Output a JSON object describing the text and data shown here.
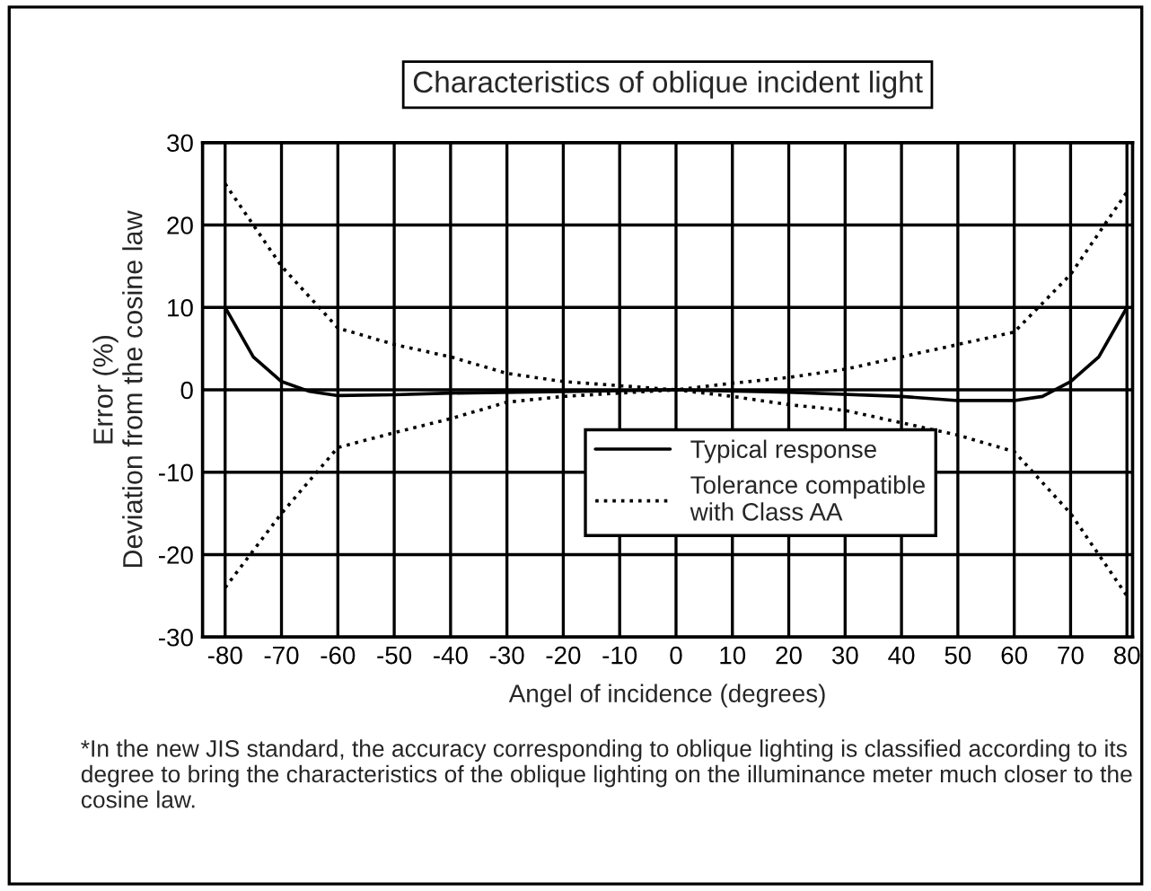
{
  "chart_data": {
    "type": "line",
    "title": "Characteristics of oblique incident light",
    "xlabel": "Angel of incidence (degrees)",
    "ylabel": "Error (%)\nDeviation from the cosine law",
    "annotations": [
      "*In the new JIS standard, the accuracy corresponding to oblique lighting is classified according to its degree to bring the characteristics of the oblique lighting on the illuminance meter much closer to the cosine law."
    ],
    "series": [
      {
        "name": "Typical response",
        "color": "#000000",
        "line_style": "solid",
        "x": [
          -80,
          -75,
          -70,
          -65,
          -60,
          -50,
          -40,
          -20,
          0,
          20,
          40,
          50,
          60,
          65,
          70,
          75,
          80
        ],
        "values": [
          10,
          4,
          1,
          -0.2,
          -0.7,
          -0.6,
          -0.4,
          -0.2,
          0,
          -0.3,
          -0.8,
          -1.3,
          -1.3,
          -0.8,
          1,
          4,
          10
        ]
      },
      {
        "name": "Tolerance compatible\nwith Class AA",
        "color": "#000000",
        "line_style": "dotted",
        "x": [
          -80,
          -70,
          -60,
          -50,
          -40,
          -30,
          -20,
          -10,
          0,
          10,
          20,
          30,
          40,
          50,
          60,
          70,
          80
        ],
        "values": [
          25,
          15,
          7.5,
          5.5,
          4,
          2,
          1,
          0.5,
          0,
          0.8,
          1.5,
          2.5,
          4,
          5.5,
          7,
          14,
          24
        ]
      },
      {
        "color": "#000000",
        "line_style": "dotted",
        "x": [
          -80,
          -70,
          -60,
          -50,
          -40,
          -30,
          -20,
          -10,
          0,
          10,
          20,
          30,
          40,
          50,
          60,
          70,
          80
        ],
        "values": [
          -24,
          -15,
          -7,
          -5.2,
          -3.5,
          -1.5,
          -0.8,
          -0.4,
          0,
          -0.8,
          -1.8,
          -2.5,
          -4,
          -5.5,
          -7.5,
          -15,
          -25
        ]
      }
    ],
    "xlim": [
      -84,
      81
    ],
    "xticks": [
      -80,
      -70,
      -60,
      -50,
      -40,
      -30,
      -20,
      -10,
      0,
      10,
      20,
      30,
      40,
      50,
      60,
      70,
      80
    ],
    "ylim": [
      -30,
      30
    ],
    "yticks": [
      -30,
      -20,
      -10,
      0,
      10,
      20,
      30
    ],
    "grid": true,
    "legend": "bottom"
  }
}
